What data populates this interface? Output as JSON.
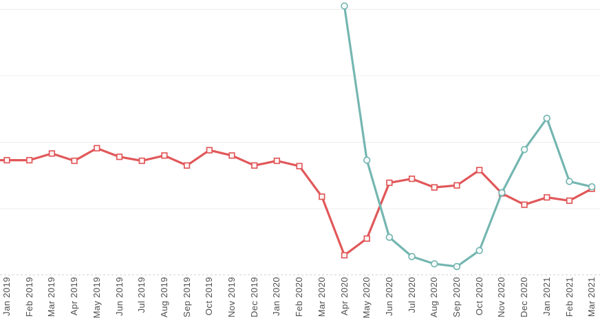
{
  "chart_data": {
    "type": "line",
    "title": "",
    "xlabel": "",
    "ylabel": "",
    "legend": "none",
    "y_axis_labels_visible": false,
    "value_unit_note": "y-axis is cropped out of view; values are expressed in gridline-spacing units above the dashed bottom axis line (one horizontal gridline = 1 unit)",
    "ylim": [
      0,
      4.14
    ],
    "y_gridline_values": [
      1,
      2,
      3,
      4
    ],
    "x_tick_rotation": -90,
    "categories": [
      "Jan 2019",
      "Feb 2019",
      "Mar 2019",
      "Apr 2019",
      "May 2019",
      "Jun 2019",
      "Jul 2019",
      "Aug 2019",
      "Sep 2019",
      "Oct 2019",
      "Nov 2019",
      "Dec 2019",
      "Jan 2020",
      "Feb 2020",
      "Mar 2020",
      "Apr 2020",
      "May 2020",
      "Jun 2020",
      "Jul 2020",
      "Aug 2020",
      "Sep 2020",
      "Oct 2020",
      "Nov 2020",
      "Dec 2020",
      "Jan 2021",
      "Feb 2021",
      "Mar 2021"
    ],
    "series": [
      {
        "name": "red-series",
        "color": "#e15759",
        "marker": "square",
        "extends_left_offscreen": true,
        "values": [
          1.73,
          1.73,
          1.83,
          1.72,
          1.91,
          1.78,
          1.72,
          1.8,
          1.65,
          1.88,
          1.8,
          1.65,
          1.72,
          1.64,
          1.18,
          0.3,
          0.55,
          1.39,
          1.45,
          1.32,
          1.35,
          1.58,
          1.23,
          1.06,
          1.17,
          1.12,
          1.3
        ]
      },
      {
        "name": "teal-series",
        "color": "#74b6b1",
        "marker": "circle",
        "extends_left_offscreen": false,
        "values": [
          null,
          null,
          null,
          null,
          null,
          null,
          null,
          null,
          null,
          null,
          null,
          null,
          null,
          null,
          null,
          4.05,
          1.73,
          0.57,
          0.28,
          0.17,
          0.13,
          0.37,
          1.24,
          1.89,
          2.36,
          1.41,
          1.33
        ]
      }
    ]
  },
  "style": {
    "background": "#ffffff",
    "gridline_color": "#ececec",
    "axis_line_color": "#cfcfcf",
    "label_color": "#4e4e4e",
    "marker_fill": "#ffffff"
  }
}
